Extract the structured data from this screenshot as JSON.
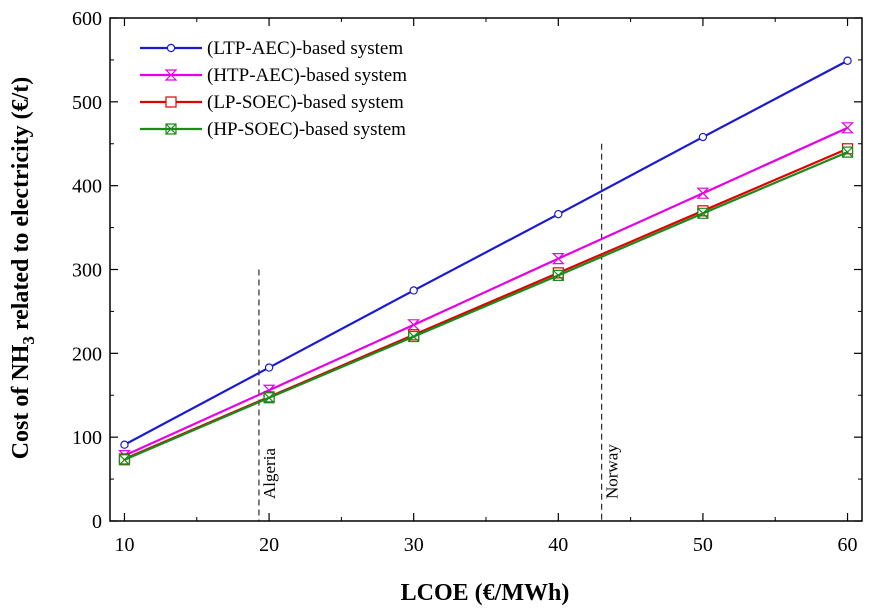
{
  "chart_data": {
    "type": "line",
    "xlabel": "LCOE (€/MWh)",
    "ylabel_parts": [
      "Cost of NH",
      "3",
      " related to electricity (€/t)"
    ],
    "xlim": [
      9,
      61
    ],
    "ylim": [
      0,
      600
    ],
    "xticks": [
      10,
      20,
      30,
      40,
      50,
      60
    ],
    "yticks": [
      0,
      100,
      200,
      300,
      400,
      500,
      600
    ],
    "x": [
      10,
      20,
      30,
      40,
      50,
      60
    ],
    "legend_position": "top-left",
    "series": [
      {
        "name": "(LTP-AEC)-based system",
        "color": "#1a1ad4",
        "marker": "circle",
        "values": [
          91,
          183,
          275,
          366,
          458,
          549
        ]
      },
      {
        "name": "(HTP-AEC)-based system",
        "color": "#e600e6",
        "marker": "hourglass",
        "values": [
          78,
          156,
          234,
          313,
          391,
          469
        ]
      },
      {
        "name": "(LP-SOEC)-based system",
        "color": "#e00000",
        "marker": "square",
        "values": [
          74,
          148,
          222,
          296,
          370,
          444
        ]
      },
      {
        "name": "(HP-SOEC)-based system",
        "color": "#1a8a1a",
        "marker": "xsquare",
        "values": [
          73,
          147,
          220,
          293,
          367,
          440
        ]
      }
    ],
    "annotations": [
      {
        "label": "Algeria",
        "x": 19.3,
        "y_top": 300
      },
      {
        "label": "Norway",
        "x": 43,
        "y_top": 450
      }
    ]
  }
}
